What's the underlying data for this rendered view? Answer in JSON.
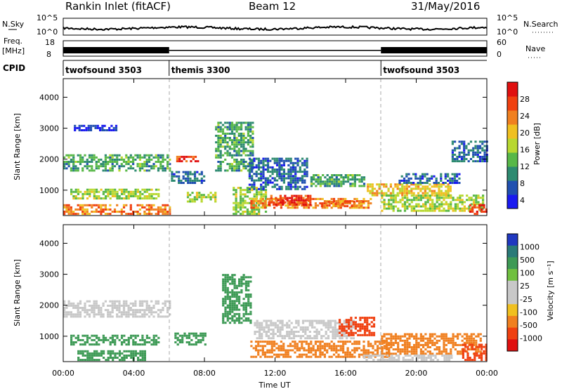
{
  "header": {
    "station": "Rankin Inlet (fitACF)",
    "beam": "Beam 12",
    "date": "31/May/2016"
  },
  "strip": {
    "nsky_label": "N.Sky",
    "nsky_ticks": [
      "10^5",
      "10^0"
    ],
    "nsearch_label": "N.Search",
    "freq_label": "Freq.",
    "freq_unit": "[MHz]",
    "freq_ticks": [
      "18",
      "8"
    ],
    "nave_ticks": [
      "60",
      "0"
    ],
    "nave_label": "Nave",
    "cpid_label": "CPID"
  },
  "cpid_segments": [
    {
      "name": "twofsound 3503",
      "start": 0,
      "end": 6
    },
    {
      "name": "themis 3300",
      "start": 6,
      "end": 18
    },
    {
      "name": "twofsound 3503",
      "start": 18,
      "end": 24
    }
  ],
  "colors": {
    "power_scale": [
      "#1a1af0",
      "#2050b0",
      "#2d8a70",
      "#58b848",
      "#b8d830",
      "#f0c020",
      "#f08020",
      "#f04010",
      "#e01010"
    ],
    "velocity_scale": [
      "#2038c0",
      "#2a7a78",
      "#3d9a55",
      "#70c040",
      "#c8c8c8",
      "#c8c8c8",
      "#f0c020",
      "#f08020",
      "#f04010",
      "#e01010"
    ]
  },
  "chart_data": [
    {
      "type": "heatmap",
      "name": "power",
      "ylabel": "Slant Range [km]",
      "xlim": [
        0,
        24
      ],
      "ylim": [
        180,
        4600
      ],
      "yticks": [
        1000,
        2000,
        3000,
        4000
      ],
      "colorbar": {
        "label": "Power [dB]",
        "range": [
          2,
          32
        ],
        "ticks": [
          4,
          8,
          12,
          16,
          20,
          24,
          28
        ]
      },
      "bands": [
        {
          "t0": 0,
          "t1": 6,
          "r0": 1600,
          "r1": 2100,
          "v": 12
        },
        {
          "t0": 0.4,
          "t1": 5.4,
          "r0": 700,
          "r1": 1000,
          "v": 16
        },
        {
          "t0": 0,
          "t1": 6,
          "r0": 200,
          "r1": 500,
          "v": 24
        },
        {
          "t0": 0.6,
          "t1": 3,
          "r0": 2900,
          "r1": 3050,
          "v": 4
        },
        {
          "t0": 6.4,
          "t1": 7.6,
          "r0": 1900,
          "r1": 2100,
          "v": 28
        },
        {
          "t0": 6.1,
          "t1": 8,
          "r0": 1200,
          "r1": 1600,
          "v": 8
        },
        {
          "t0": 7,
          "t1": 8.6,
          "r0": 600,
          "r1": 900,
          "v": 16
        },
        {
          "t0": 8.6,
          "t1": 10.8,
          "r0": 1600,
          "r1": 3200,
          "v": 12
        },
        {
          "t0": 9.6,
          "t1": 11.5,
          "r0": 200,
          "r1": 1100,
          "v": 16
        },
        {
          "t0": 10.5,
          "t1": 13.8,
          "r0": 1000,
          "r1": 2000,
          "v": 8
        },
        {
          "t0": 10.6,
          "t1": 17.4,
          "r0": 400,
          "r1": 700,
          "v": 24
        },
        {
          "t0": 11.6,
          "t1": 14,
          "r0": 500,
          "r1": 800,
          "v": 28
        },
        {
          "t0": 14,
          "t1": 17,
          "r0": 1100,
          "r1": 1500,
          "v": 12
        },
        {
          "t0": 14.6,
          "t1": 17,
          "r0": 450,
          "r1": 650,
          "v": 24
        },
        {
          "t0": 17.2,
          "t1": 22,
          "r0": 800,
          "r1": 1200,
          "v": 20
        },
        {
          "t0": 18,
          "t1": 23.8,
          "r0": 300,
          "r1": 800,
          "v": 16
        },
        {
          "t0": 19,
          "t1": 22.5,
          "r0": 1200,
          "r1": 1500,
          "v": 8
        },
        {
          "t0": 22,
          "t1": 24,
          "r0": 1900,
          "r1": 2600,
          "v": 8
        },
        {
          "t0": 23,
          "t1": 24,
          "r0": 200,
          "r1": 500,
          "v": 28
        }
      ]
    },
    {
      "type": "heatmap",
      "name": "velocity",
      "ylabel": "Slant Range [km]",
      "xlabel": "Time UT",
      "xlim": [
        0,
        24
      ],
      "ylim": [
        180,
        4600
      ],
      "yticks": [
        1000,
        2000,
        3000,
        4000
      ],
      "xticks": [
        "00:00",
        "04:00",
        "08:00",
        "12:00",
        "16:00",
        "20:00",
        "00:00"
      ],
      "colorbar": {
        "label": "Velocity [m s⁻¹]",
        "ticks": [
          "1000",
          "500",
          "100",
          "25",
          "-25",
          "-100",
          "-500",
          "-1000"
        ]
      },
      "bands": [
        {
          "t0": 0,
          "t1": 6,
          "r0": 1600,
          "r1": 2100,
          "v": 0
        },
        {
          "t0": 0.4,
          "t1": 5.4,
          "r0": 700,
          "r1": 1000,
          "v": 300
        },
        {
          "t0": 0.8,
          "t1": 4.6,
          "r0": 200,
          "r1": 500,
          "v": 150
        },
        {
          "t0": 6.3,
          "t1": 8,
          "r0": 700,
          "r1": 1100,
          "v": 300
        },
        {
          "t0": 9,
          "t1": 10.6,
          "r0": 1400,
          "r1": 3000,
          "v": 250
        },
        {
          "t0": 10.8,
          "t1": 16.5,
          "r0": 900,
          "r1": 1500,
          "v": 0
        },
        {
          "t0": 10.6,
          "t1": 18.5,
          "r0": 300,
          "r1": 800,
          "v": -300
        },
        {
          "t0": 15.6,
          "t1": 17.6,
          "r0": 1000,
          "r1": 1600,
          "v": -700
        },
        {
          "t0": 18,
          "t1": 23.6,
          "r0": 400,
          "r1": 1100,
          "v": -200
        },
        {
          "t0": 17,
          "t1": 22,
          "r0": 200,
          "r1": 400,
          "v": 0
        },
        {
          "t0": 22.6,
          "t1": 24,
          "r0": 200,
          "r1": 700,
          "v": -600
        }
      ]
    }
  ]
}
